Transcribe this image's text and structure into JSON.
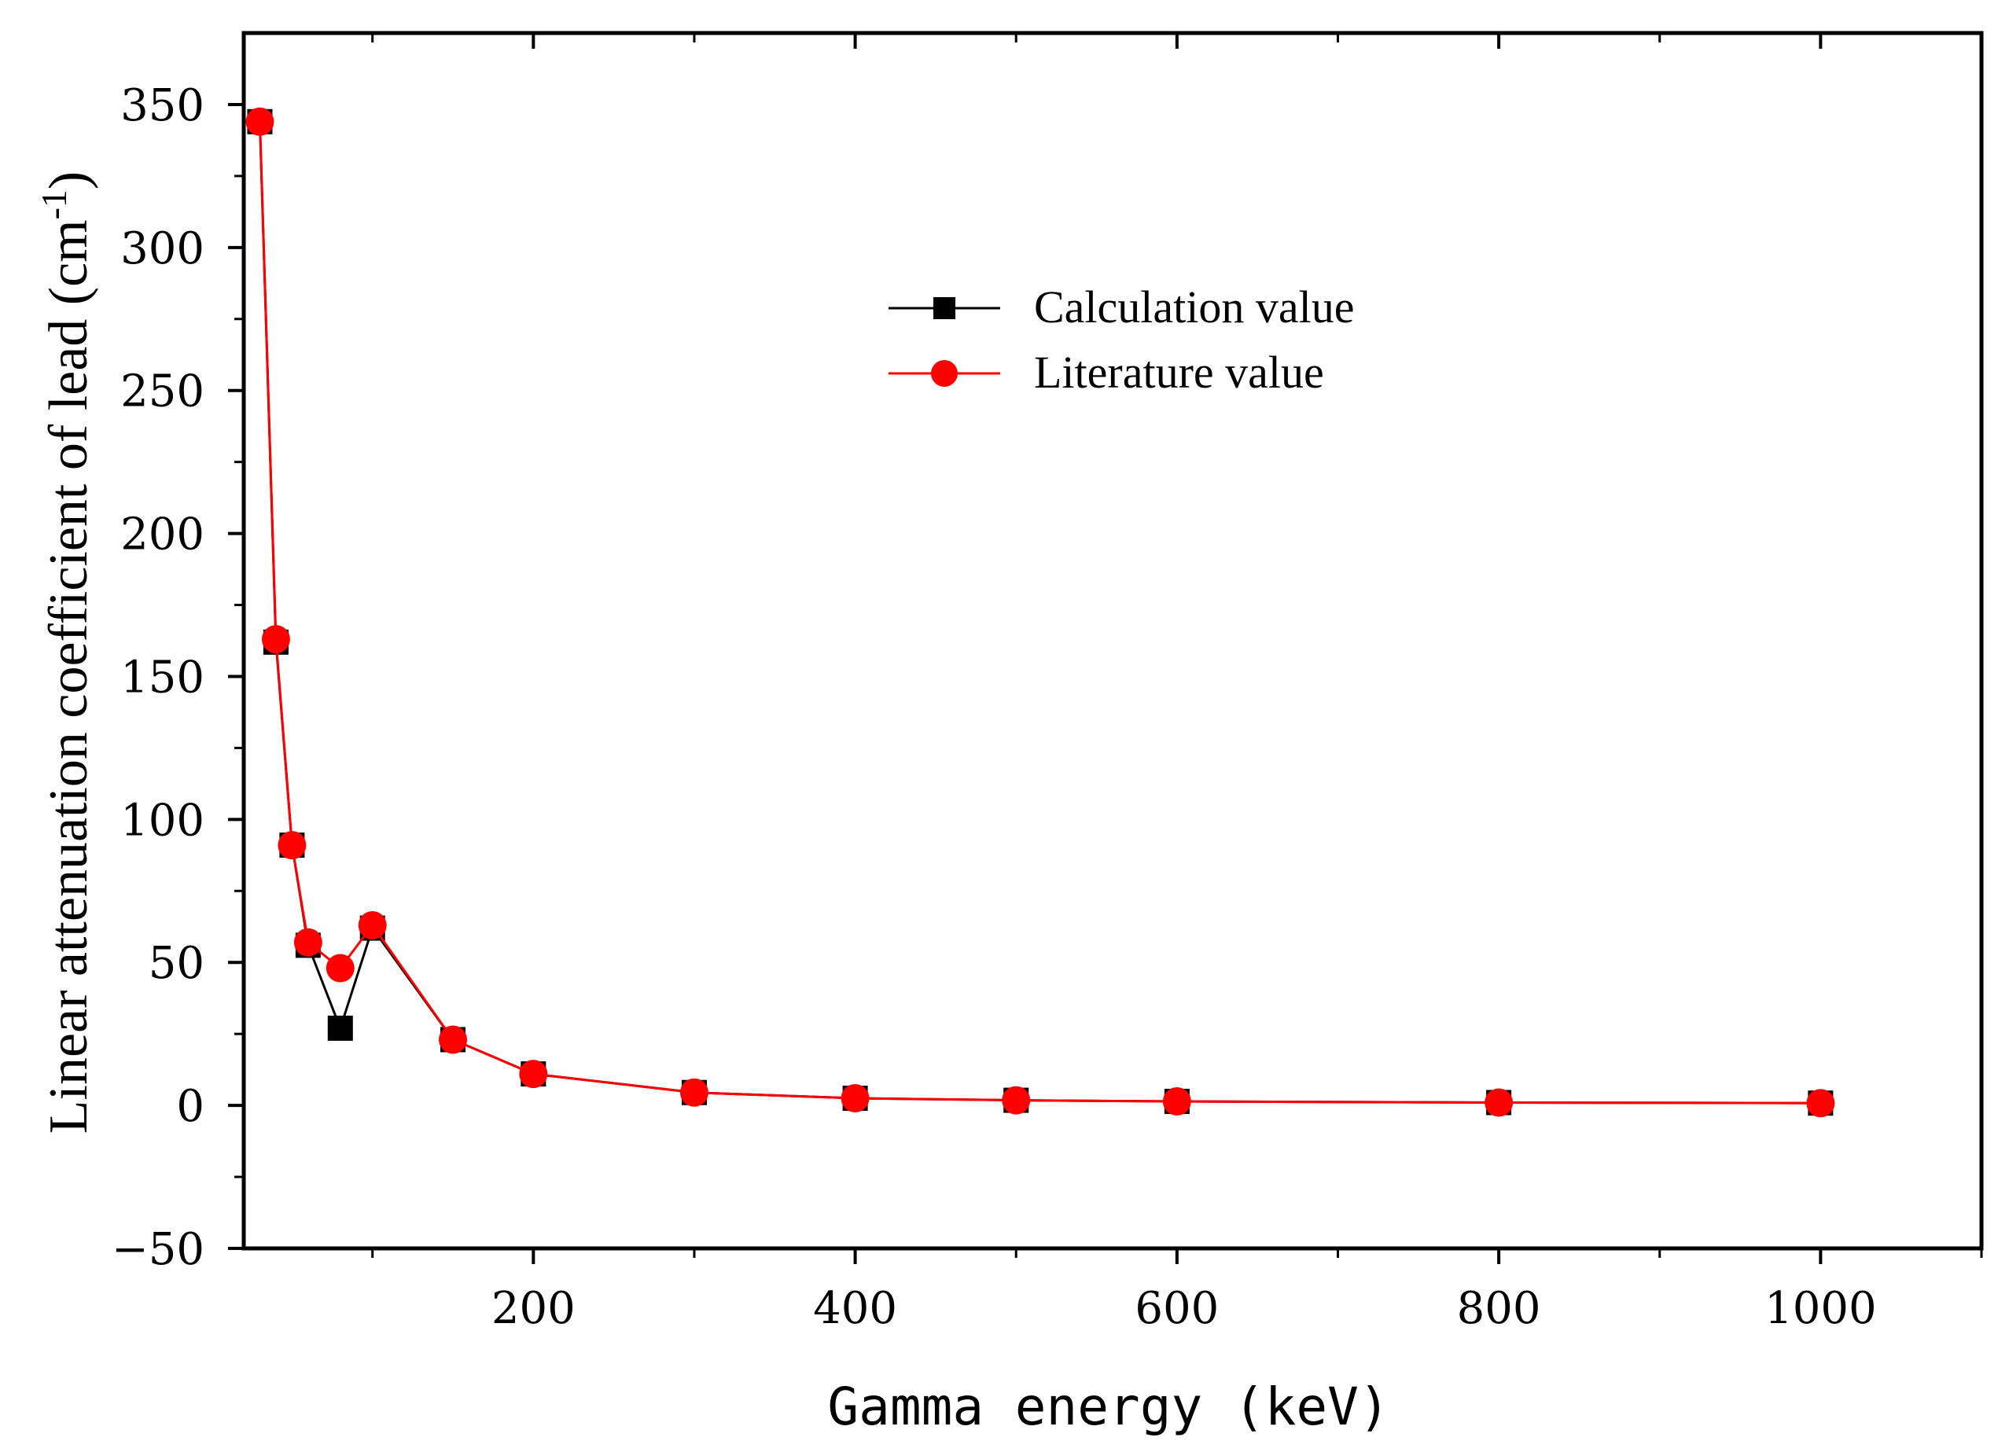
{
  "chart_data": {
    "type": "line",
    "title": "",
    "xlabel": "Gamma energy (keV)",
    "ylabel_main": "Linear attenuation coefficient of lead (cm",
    "ylabel_sup": "-1",
    "ylabel_close": ")",
    "xlim": [
      20,
      1100
    ],
    "ylim": [
      -50,
      375
    ],
    "x_ticks": [
      200,
      400,
      600,
      800,
      1000
    ],
    "x_minor_ticks": [
      100,
      300,
      500,
      700,
      900,
      1100
    ],
    "y_ticks": [
      -50,
      0,
      50,
      100,
      150,
      200,
      250,
      300,
      350
    ],
    "y_tick_labels": [
      "−50",
      "0",
      "50",
      "100",
      "150",
      "200",
      "250",
      "300",
      "350"
    ],
    "y_minor_ticks": [
      -25,
      25,
      75,
      125,
      175,
      225,
      275,
      325
    ],
    "legend_position": "upper-center",
    "series": [
      {
        "name": "Calculation value",
        "color": "#000000",
        "marker": "square",
        "x": [
          30,
          40,
          50,
          60,
          80,
          100,
          150,
          200,
          300,
          400,
          500,
          600,
          800,
          1000
        ],
        "y": [
          344,
          162,
          91,
          56,
          27,
          62,
          23,
          11,
          4.5,
          2.5,
          1.8,
          1.4,
          1.0,
          0.8
        ]
      },
      {
        "name": "Literature value",
        "color": "#ff0000",
        "marker": "circle",
        "x": [
          30,
          40,
          50,
          60,
          80,
          100,
          150,
          200,
          300,
          400,
          500,
          600,
          800,
          1000
        ],
        "y": [
          344,
          163,
          91,
          57,
          48,
          63,
          23,
          11,
          4.5,
          2.5,
          1.8,
          1.4,
          1.0,
          0.8
        ]
      }
    ]
  }
}
